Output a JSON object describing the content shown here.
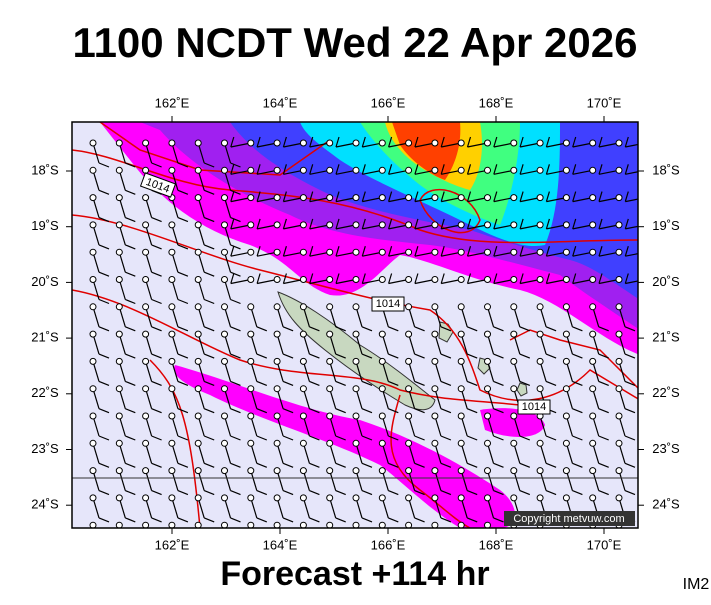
{
  "header": {
    "title": "1100 NCDT Wed 22 Apr 2026"
  },
  "map": {
    "x_labels": [
      "162˚E",
      "164˚E",
      "166˚E",
      "168˚E",
      "170˚E"
    ],
    "y_labels": [
      "18˚S",
      "19˚S",
      "20˚S",
      "21˚S",
      "22˚S",
      "23˚S",
      "24˚S"
    ],
    "isobar_labels": [
      "1014",
      "1014",
      "1014"
    ],
    "copyright": "Copyright metvuw.com"
  },
  "footer": {
    "forecast": "Forecast +114 hr",
    "code": "IM2"
  }
}
